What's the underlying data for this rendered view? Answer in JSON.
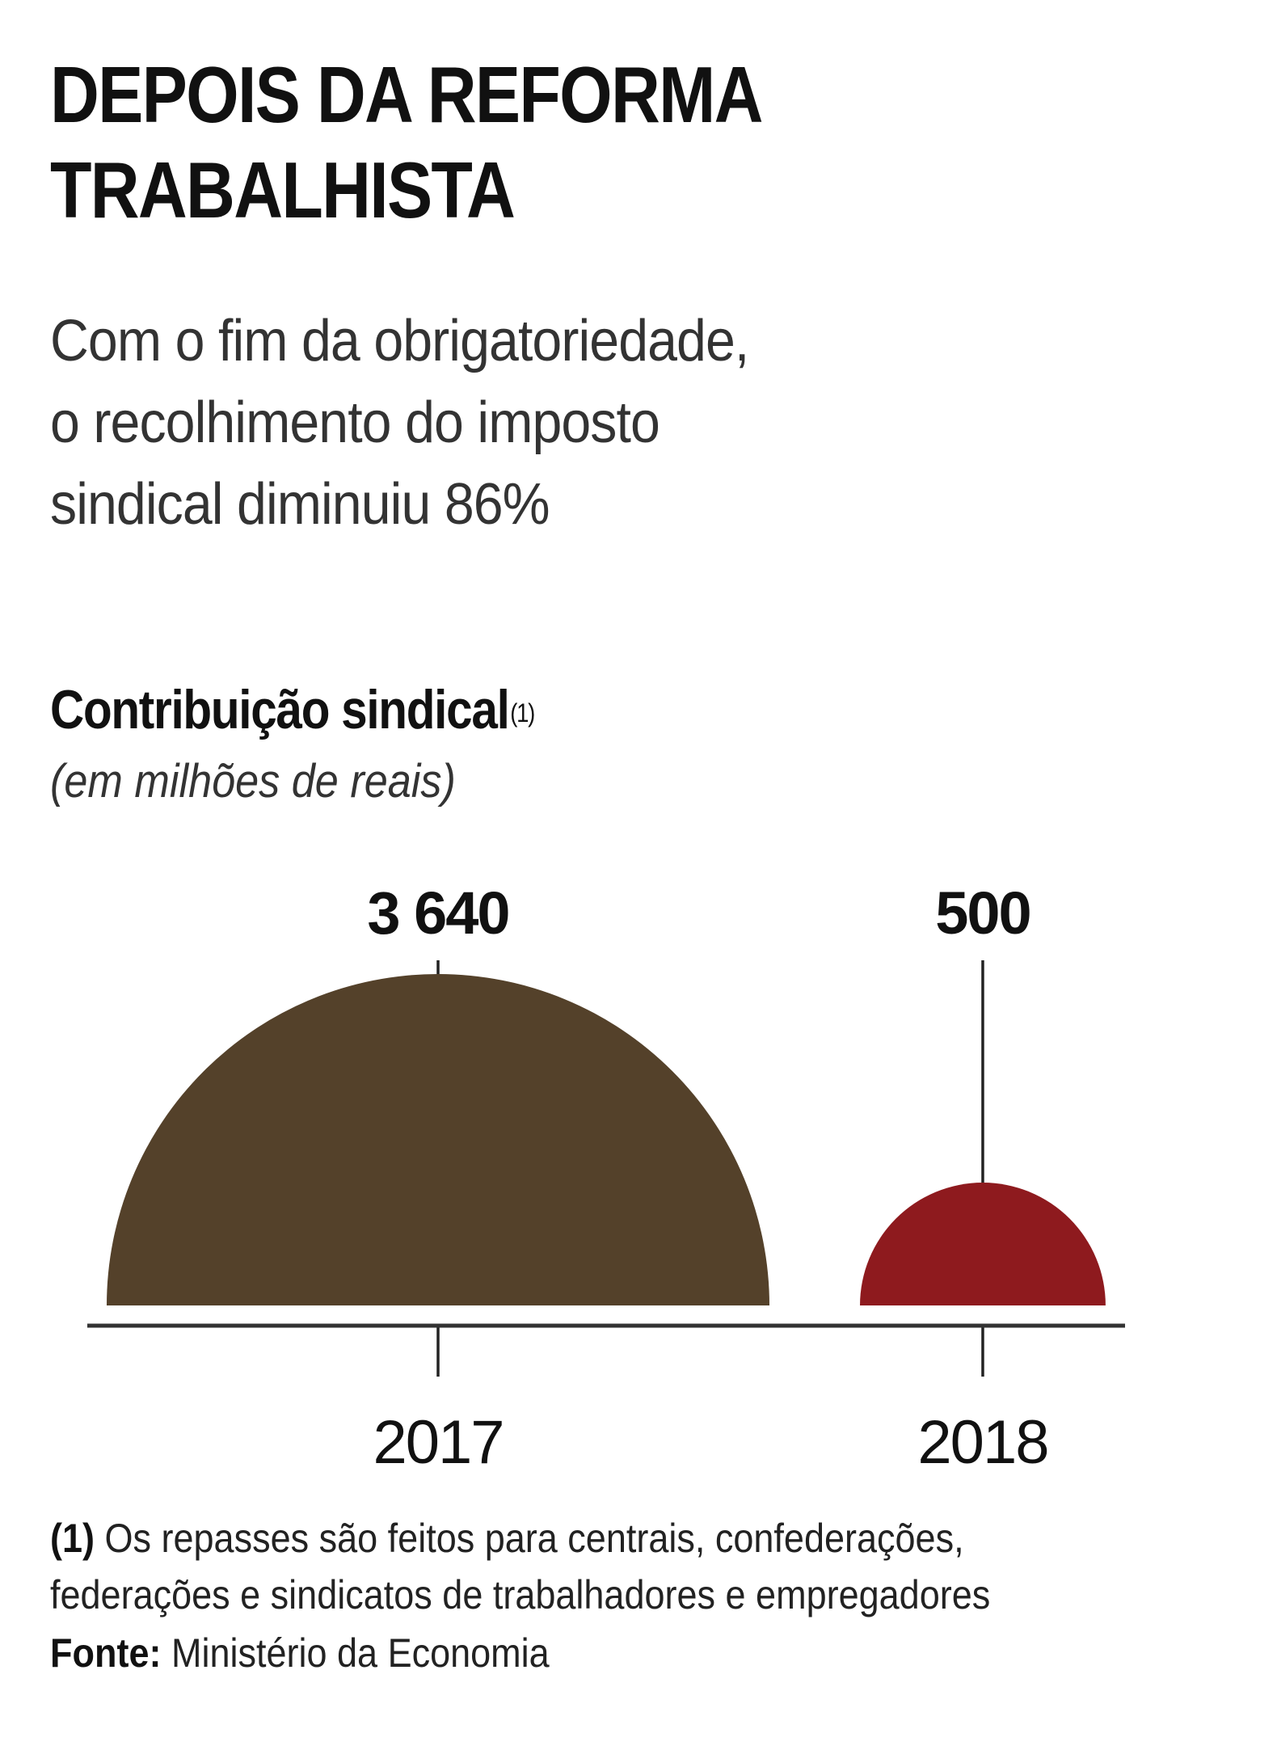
{
  "header": {
    "title_line1": "DEPOIS DA REFORMA",
    "title_line2": "TRABALHISTA",
    "subtitle_line1": "Com o fim da obrigatoriedade,",
    "subtitle_line2": "o recolhimento do imposto",
    "subtitle_line3": "sindical diminuiu 86%"
  },
  "chart_data": {
    "type": "bar",
    "shape": "semicircle",
    "title": "Contribuição sindical",
    "title_note_marker": "(1)",
    "unit": "(em milhões de reais)",
    "categories": [
      "2017",
      "2018"
    ],
    "values": [
      3640,
      500
    ],
    "value_labels": [
      "3 640",
      "500"
    ],
    "colors": [
      "#54412a",
      "#8e1a1e"
    ]
  },
  "footer": {
    "note_marker": "(1)",
    "note_line1": "Os repasses são feitos para centrais, confederações,",
    "note_line2": "federações e sindicatos de trabalhadores e empregadores",
    "source_label": "Fonte:",
    "source_text": "Ministério da Economia"
  }
}
